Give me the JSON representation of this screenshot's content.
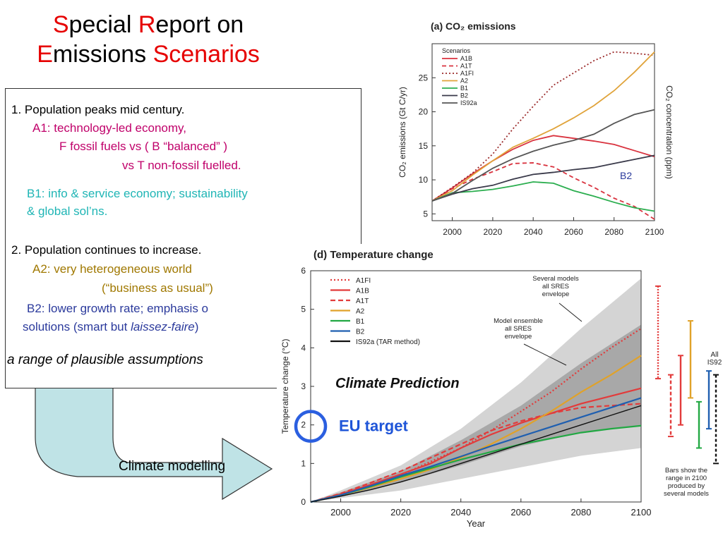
{
  "title": {
    "line1": [
      {
        "text": "S",
        "accent": true
      },
      {
        "text": "pecial ",
        "accent": false
      },
      {
        "text": "R",
        "accent": true
      },
      {
        "text": "eport on",
        "accent": false
      }
    ],
    "line2": [
      {
        "text": "E",
        "accent": true
      },
      {
        "text": "missions ",
        "accent": false
      },
      {
        "text": "Scenarios",
        "accent": true
      }
    ]
  },
  "text": {
    "p1": "1. Population peaks mid century.",
    "a1": "A1:  technology-led economy,",
    "a1f": "F  fossil fuels     vs  ( B “balanced” )",
    "a1t": "vs   T  non-fossil fuelled.",
    "b1a": "B1:  info & service economy;  sustainability",
    "b1b": "& global sol’ns.",
    "p2": "2.  Population continues to increase.",
    "a2a": "A2:  very heterogeneous world",
    "a2b": "(“business as usual”)",
    "b2a": "B2:  lower growth rate; emphasis o",
    "b2b_pre": "solutions (smart but ",
    "b2b_it": "laissez-faire",
    "b2b_post": ")",
    "range": "a range of plausible assumptions"
  },
  "arrow_label": "Climate modelling",
  "colors": {
    "accent": "#e60000",
    "magenta": "#c0006a",
    "cyan": "#1fb5b5",
    "olive": "#a07800",
    "navy": "#2b3a9c"
  },
  "co2": {
    "title": "(a) CO₂ emissions",
    "ylabel": "CO₂ emissions (Gt C/yr)",
    "ylabel2": "CO₂ concentration (ppm)",
    "legend_title": "Scenarios",
    "b2_label": "B2"
  },
  "temp": {
    "title": "(d) Temperature change",
    "ylabel": "Temperature change (°C)",
    "xlabel": "Year",
    "ann1": [
      "Several models",
      "all SRES",
      "envelope"
    ],
    "ann2": [
      "Model ensemble",
      "all SRES",
      "envelope"
    ],
    "ann_bars": [
      "Bars show the",
      "range in 2100",
      "produced by",
      "several models"
    ],
    "all_is92": [
      "All",
      "IS92"
    ],
    "climate_prediction": "Climate Prediction",
    "eu_target": "EU target"
  },
  "chart_data": [
    {
      "type": "line",
      "title": "(a) CO₂ emissions",
      "xlabel": "",
      "ylabel": "CO₂ emissions (Gt C/yr)",
      "xlim": [
        1990,
        2100
      ],
      "ylim": [
        4,
        30
      ],
      "xticks": [
        2000,
        2020,
        2040,
        2060,
        2080,
        2100
      ],
      "yticks": [
        5,
        10,
        15,
        20,
        25
      ],
      "legend": "top-left",
      "series": [
        {
          "name": "A1B",
          "color": "#d9333f",
          "dash": "",
          "x": [
            1990,
            2000,
            2010,
            2020,
            2030,
            2040,
            2050,
            2060,
            2070,
            2080,
            2090,
            2100
          ],
          "y": [
            6.9,
            8.8,
            10.9,
            12.8,
            14.5,
            15.8,
            16.5,
            16.1,
            15.7,
            15.2,
            14.3,
            13.4
          ]
        },
        {
          "name": "A1T",
          "color": "#d9333f",
          "dash": "6,4",
          "x": [
            1990,
            2000,
            2010,
            2020,
            2030,
            2040,
            2050,
            2060,
            2070,
            2080,
            2090,
            2100
          ],
          "y": [
            6.9,
            8.7,
            10.1,
            11.2,
            12.4,
            12.5,
            11.9,
            10.3,
            8.9,
            7.3,
            6.1,
            4.2
          ]
        },
        {
          "name": "A1FI",
          "color": "#9b2a2a",
          "dash": "2,3",
          "x": [
            1990,
            2000,
            2010,
            2020,
            2030,
            2040,
            2050,
            2060,
            2070,
            2080,
            2090,
            2100
          ],
          "y": [
            6.9,
            8.9,
            11.0,
            13.8,
            17.5,
            20.8,
            23.9,
            25.7,
            27.5,
            28.8,
            28.6,
            28.3
          ]
        },
        {
          "name": "A2",
          "color": "#e0a33a",
          "dash": "",
          "x": [
            1990,
            2000,
            2010,
            2020,
            2030,
            2040,
            2050,
            2060,
            2070,
            2080,
            2090,
            2100
          ],
          "y": [
            6.9,
            8.4,
            10.7,
            12.8,
            14.8,
            16.1,
            17.5,
            19.1,
            20.9,
            23.1,
            25.8,
            28.8
          ]
        },
        {
          "name": "B1",
          "color": "#2bae4f",
          "dash": "",
          "x": [
            1990,
            2000,
            2010,
            2020,
            2030,
            2040,
            2050,
            2060,
            2070,
            2080,
            2090,
            2100
          ],
          "y": [
            6.9,
            8.1,
            8.3,
            8.6,
            9.1,
            9.7,
            9.5,
            8.4,
            7.6,
            6.7,
            5.9,
            5.4
          ]
        },
        {
          "name": "B2",
          "color": "#3a3a4a",
          "dash": "",
          "x": [
            1990,
            2000,
            2010,
            2020,
            2030,
            2040,
            2050,
            2060,
            2070,
            2080,
            2090,
            2100
          ],
          "y": [
            6.9,
            7.9,
            8.7,
            9.2,
            10.1,
            10.8,
            11.1,
            11.5,
            11.8,
            12.4,
            13.0,
            13.6
          ]
        },
        {
          "name": "IS92a",
          "color": "#555555",
          "dash": "",
          "x": [
            1990,
            2000,
            2010,
            2020,
            2030,
            2040,
            2050,
            2060,
            2070,
            2080,
            2090,
            2100
          ],
          "y": [
            6.9,
            8.0,
            9.9,
            11.7,
            13.1,
            14.2,
            15.1,
            15.8,
            16.7,
            18.3,
            19.6,
            20.3
          ]
        }
      ]
    },
    {
      "type": "line",
      "title": "(d) Temperature change",
      "xlabel": "Year",
      "ylabel": "Temperature change (°C)",
      "xlim": [
        1990,
        2100
      ],
      "ylim": [
        0,
        6
      ],
      "xticks": [
        2000,
        2020,
        2040,
        2060,
        2080,
        2100
      ],
      "yticks": [
        0,
        1,
        2,
        3,
        4,
        5,
        6
      ],
      "legend": "top-left",
      "series": [
        {
          "name": "A1FI",
          "color": "#e23b3b",
          "dash": "2,3",
          "x": [
            1990,
            2000,
            2010,
            2020,
            2030,
            2040,
            2050,
            2060,
            2070,
            2080,
            2090,
            2100
          ],
          "y": [
            0,
            0.2,
            0.4,
            0.7,
            1.05,
            1.4,
            1.85,
            2.35,
            2.85,
            3.45,
            4.0,
            4.5
          ]
        },
        {
          "name": "A1B",
          "color": "#e23b3b",
          "dash": "",
          "x": [
            1990,
            2000,
            2010,
            2020,
            2030,
            2040,
            2050,
            2060,
            2070,
            2080,
            2090,
            2100
          ],
          "y": [
            0,
            0.2,
            0.45,
            0.72,
            1.0,
            1.4,
            1.75,
            2.05,
            2.3,
            2.55,
            2.75,
            2.95
          ]
        },
        {
          "name": "A1T",
          "color": "#e23b3b",
          "dash": "7,4",
          "x": [
            1990,
            2000,
            2010,
            2020,
            2030,
            2040,
            2050,
            2060,
            2070,
            2080,
            2090,
            2100
          ],
          "y": [
            0,
            0.22,
            0.5,
            0.8,
            1.15,
            1.5,
            1.85,
            2.1,
            2.3,
            2.45,
            2.5,
            2.55
          ]
        },
        {
          "name": "A2",
          "color": "#e0a22a",
          "dash": "",
          "x": [
            1990,
            2000,
            2010,
            2020,
            2030,
            2040,
            2050,
            2060,
            2070,
            2080,
            2090,
            2100
          ],
          "y": [
            0,
            0.18,
            0.38,
            0.6,
            0.85,
            1.15,
            1.5,
            1.9,
            2.35,
            2.85,
            3.3,
            3.8
          ]
        },
        {
          "name": "B1",
          "color": "#22a843",
          "dash": "",
          "x": [
            1990,
            2000,
            2010,
            2020,
            2030,
            2040,
            2050,
            2060,
            2070,
            2080,
            2090,
            2100
          ],
          "y": [
            0,
            0.18,
            0.4,
            0.65,
            0.88,
            1.1,
            1.3,
            1.5,
            1.65,
            1.8,
            1.9,
            1.98
          ]
        },
        {
          "name": "B2",
          "color": "#1f5fb0",
          "dash": "",
          "x": [
            1990,
            2000,
            2010,
            2020,
            2030,
            2040,
            2050,
            2060,
            2070,
            2080,
            2090,
            2100
          ],
          "y": [
            0,
            0.18,
            0.42,
            0.68,
            0.92,
            1.18,
            1.45,
            1.7,
            1.95,
            2.2,
            2.45,
            2.7
          ]
        },
        {
          "name": "IS92a (TAR method)",
          "color": "#111111",
          "dash": "",
          "x": [
            1990,
            2000,
            2010,
            2020,
            2030,
            2040,
            2050,
            2060,
            2070,
            2080,
            2090,
            2100
          ],
          "y": [
            0,
            0.15,
            0.32,
            0.52,
            0.75,
            1.0,
            1.25,
            1.5,
            1.75,
            2.0,
            2.25,
            2.5
          ]
        }
      ],
      "envelopes": [
        {
          "name": "Several models all SRES envelope",
          "color": "#d4d4d4",
          "x": [
            1990,
            2000,
            2020,
            2040,
            2060,
            2080,
            2100
          ],
          "low": [
            0,
            0.1,
            0.3,
            0.6,
            0.9,
            1.2,
            1.4
          ],
          "high": [
            0,
            0.3,
            0.95,
            1.9,
            3.1,
            4.5,
            5.8
          ]
        },
        {
          "name": "Model ensemble all SRES envelope",
          "color": "#a8a8a8",
          "x": [
            1990,
            2000,
            2020,
            2040,
            2060,
            2080,
            2100
          ],
          "low": [
            0,
            0.15,
            0.5,
            0.95,
            1.45,
            1.8,
            2.0
          ],
          "high": [
            0,
            0.25,
            0.8,
            1.6,
            2.5,
            3.6,
            4.6
          ]
        }
      ],
      "range_bars_2100": [
        {
          "name": "A1FI",
          "color": "#e23b3b",
          "dash": "2,2",
          "low": 3.2,
          "high": 5.6
        },
        {
          "name": "A1T",
          "color": "#e23b3b",
          "dash": "5,3",
          "low": 1.7,
          "high": 3.3
        },
        {
          "name": "A1B",
          "color": "#e23b3b",
          "dash": "",
          "low": 2.0,
          "high": 3.8
        },
        {
          "name": "A2",
          "color": "#e0a22a",
          "dash": "",
          "low": 2.7,
          "high": 4.7
        },
        {
          "name": "B1",
          "color": "#22a843",
          "dash": "",
          "low": 1.4,
          "high": 2.6
        },
        {
          "name": "B2",
          "color": "#1f5fb0",
          "dash": "",
          "low": 1.9,
          "high": 3.4
        },
        {
          "name": "All IS92",
          "color": "#111111",
          "dash": "4,3",
          "low": 1.0,
          "high": 3.3
        }
      ],
      "annotation": {
        "label": "EU target",
        "y": 2
      }
    }
  ]
}
